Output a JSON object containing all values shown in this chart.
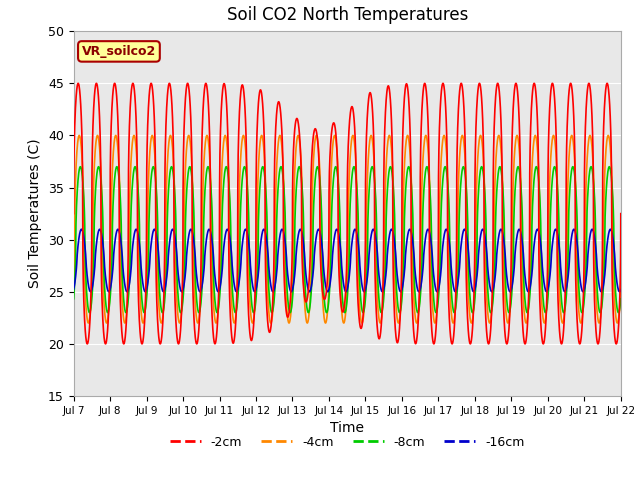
{
  "title": "Soil CO2 North Temperatures",
  "xlabel": "Time",
  "ylabel": "Soil Temperatures (C)",
  "ylim": [
    15,
    50
  ],
  "xlim": [
    0,
    15
  ],
  "x_tick_labels": [
    "Jul 7",
    "Jul 8",
    "Jul 9",
    "Jul 10",
    "Jul 11",
    "Jul 12",
    "Jul 13",
    "Jul 14",
    "Jul 15",
    "Jul 16",
    "Jul 17",
    "Jul 18",
    "Jul 19",
    "Jul 20",
    "Jul 21",
    "Jul 22"
  ],
  "annotation_text": "VR_soilco2",
  "annotation_bg": "#ffff99",
  "annotation_border": "#aa0000",
  "bg_color": "#e8e8e8",
  "grid_color": "#ffffff",
  "legend_items": [
    "-2cm",
    "-4cm",
    "-8cm",
    "-16cm"
  ],
  "legend_colors": [
    "#ff0000",
    "#ff8800",
    "#00cc00",
    "#0000cc"
  ]
}
